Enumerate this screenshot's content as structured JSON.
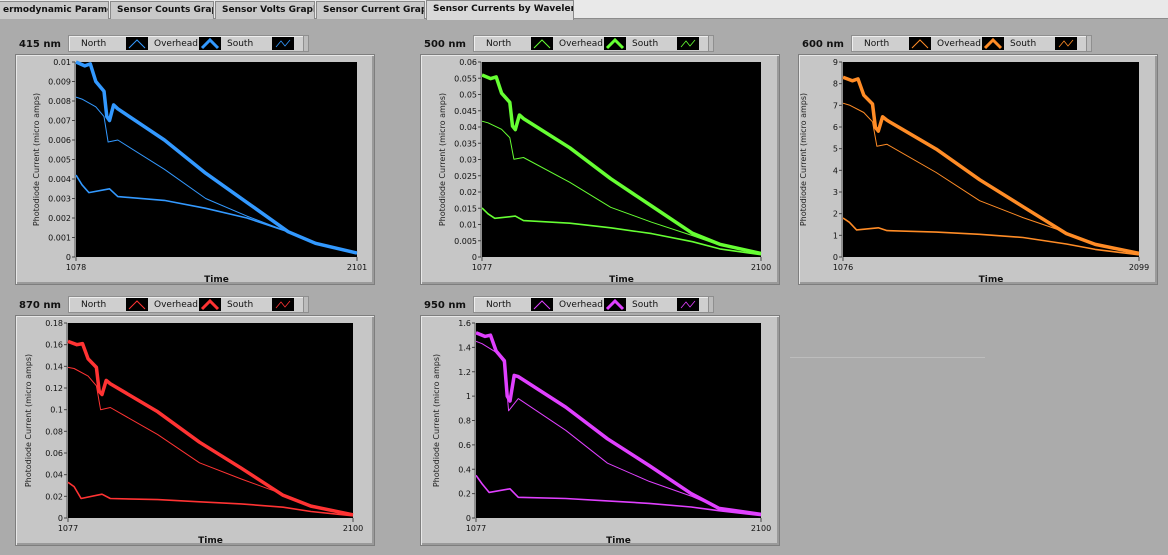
{
  "tabs": [
    {
      "label": "ermodynamic Parameters"
    },
    {
      "label": "Sensor Counts Graphs"
    },
    {
      "label": "Sensor Volts Graphs"
    },
    {
      "label": "Sensor Current Graphs"
    },
    {
      "label": "Sensor Currents by Wavelength",
      "active": true
    }
  ],
  "legend_labels": [
    "North",
    "Overhead",
    "South"
  ],
  "chart_data": [
    {
      "type": "line",
      "title": "415 nm",
      "color": "#3399ff",
      "xlabel": "Time",
      "ylabel": "Photodiode Current (micro amps)",
      "xlim": [
        1078,
        2101
      ],
      "ylim": [
        0,
        0.01
      ],
      "xtick_labels": [
        "1078",
        "2101"
      ],
      "ytick_labels": [
        "0",
        "0.001",
        "0.002",
        "0.003",
        "0.004",
        "0.005",
        "0.006",
        "0.007",
        "0.008",
        "0.009",
        "0.01"
      ],
      "series": [
        {
          "name": "Overhead",
          "x": [
            1078,
            1110,
            1130,
            1150,
            1180,
            1190,
            1200,
            1215,
            1230,
            1400,
            1550,
            1700,
            1850,
            1950,
            2101
          ],
          "y": [
            0.01,
            0.0098,
            0.0099,
            0.009,
            0.0085,
            0.0072,
            0.007,
            0.0078,
            0.0076,
            0.006,
            0.0043,
            0.0028,
            0.0013,
            0.0007,
            0.0002
          ]
        },
        {
          "name": "North",
          "x": [
            1078,
            1100,
            1150,
            1180,
            1195,
            1230,
            1400,
            1550,
            1700,
            1850,
            1950,
            2101
          ],
          "y": [
            0.0082,
            0.0081,
            0.0077,
            0.0072,
            0.0059,
            0.006,
            0.0045,
            0.003,
            0.0021,
            0.0013,
            0.0007,
            0.0002
          ]
        },
        {
          "name": "South",
          "x": [
            1078,
            1100,
            1125,
            1200,
            1230,
            1400,
            1550,
            1700,
            1850,
            1950,
            2101
          ],
          "y": [
            0.0042,
            0.0037,
            0.0033,
            0.0035,
            0.0031,
            0.0029,
            0.0025,
            0.002,
            0.0013,
            0.0007,
            0.0002
          ]
        }
      ]
    },
    {
      "type": "line",
      "title": "500 nm",
      "color": "#66ff33",
      "xlabel": "Time",
      "ylabel": "Photodiode Current (micro amps)",
      "xlim": [
        1077,
        2100
      ],
      "ylim": [
        0,
        0.06
      ],
      "xtick_labels": [
        "1077",
        "2100"
      ],
      "ytick_labels": [
        "0",
        "0.005",
        "0.01",
        "0.015",
        "0.02",
        "0.025",
        "0.03",
        "0.035",
        "0.04",
        "0.045",
        "0.05",
        "0.055",
        "0.06"
      ],
      "series": [
        {
          "name": "Overhead",
          "x": [
            1077,
            1109,
            1129,
            1149,
            1179,
            1189,
            1199,
            1214,
            1229,
            1399,
            1549,
            1699,
            1849,
            1949,
            2100
          ],
          "y": [
            0.056,
            0.0549,
            0.0554,
            0.0504,
            0.0476,
            0.0403,
            0.0392,
            0.0437,
            0.0426,
            0.0336,
            0.0241,
            0.0157,
            0.0073,
            0.0039,
            0.0011
          ]
        },
        {
          "name": "North",
          "x": [
            1077,
            1099,
            1149,
            1179,
            1194,
            1229,
            1399,
            1549,
            1699,
            1849,
            1949,
            2100
          ],
          "y": [
            0.0418,
            0.0413,
            0.0393,
            0.0367,
            0.0301,
            0.0306,
            0.023,
            0.0153,
            0.0107,
            0.0066,
            0.0036,
            0.001
          ]
        },
        {
          "name": "South",
          "x": [
            1077,
            1099,
            1124,
            1199,
            1229,
            1399,
            1549,
            1699,
            1849,
            1949,
            2100
          ],
          "y": [
            0.0151,
            0.0133,
            0.0119,
            0.0126,
            0.0112,
            0.0104,
            0.009,
            0.0072,
            0.0047,
            0.0025,
            0.0007
          ]
        }
      ]
    },
    {
      "type": "line",
      "title": "600 nm",
      "color": "#ff8c26",
      "xlabel": "Time",
      "ylabel": "Photodiode Current (micro amps)",
      "xlim": [
        1076,
        2099
      ],
      "ylim": [
        0,
        9
      ],
      "xtick_labels": [
        "1076",
        "2099"
      ],
      "ytick_labels": [
        "0",
        "1",
        "2",
        "3",
        "4",
        "5",
        "6",
        "7",
        "8",
        "9"
      ],
      "series": [
        {
          "name": "Overhead",
          "x": [
            1076,
            1108,
            1128,
            1148,
            1178,
            1188,
            1198,
            1213,
            1228,
            1398,
            1548,
            1698,
            1848,
            1948,
            2099
          ],
          "y": [
            8.3,
            8.13,
            8.22,
            7.47,
            7.06,
            5.98,
            5.81,
            6.47,
            6.31,
            4.98,
            3.57,
            2.32,
            1.08,
            0.58,
            0.17
          ]
        },
        {
          "name": "North",
          "x": [
            1076,
            1098,
            1148,
            1178,
            1193,
            1228,
            1398,
            1548,
            1698,
            1848,
            1948,
            2099
          ],
          "y": [
            7.1,
            7.01,
            6.67,
            6.24,
            5.11,
            5.2,
            3.9,
            2.6,
            1.82,
            1.13,
            0.61,
            0.17
          ]
        },
        {
          "name": "South",
          "x": [
            1076,
            1098,
            1123,
            1198,
            1228,
            1398,
            1548,
            1698,
            1848,
            1948,
            2099
          ],
          "y": [
            1.8,
            1.6,
            1.25,
            1.35,
            1.22,
            1.15,
            1.05,
            0.9,
            0.6,
            0.35,
            0.1
          ]
        }
      ]
    },
    {
      "type": "line",
      "title": "870 nm",
      "color": "#ff3333",
      "xlabel": "Time",
      "ylabel": "Photodiode Current (micro amps)",
      "xlim": [
        1077,
        2100
      ],
      "ylim": [
        0,
        0.18
      ],
      "xtick_labels": [
        "1077",
        "2100"
      ],
      "ytick_labels": [
        "0",
        "0.02",
        "0.04",
        "0.06",
        "0.08",
        "0.1",
        "0.12",
        "0.14",
        "0.16",
        "0.18"
      ],
      "series": [
        {
          "name": "Overhead",
          "x": [
            1077,
            1109,
            1129,
            1149,
            1179,
            1189,
            1199,
            1214,
            1229,
            1399,
            1549,
            1699,
            1849,
            1949,
            2100
          ],
          "y": [
            0.163,
            0.16,
            0.161,
            0.147,
            0.139,
            0.117,
            0.114,
            0.127,
            0.124,
            0.098,
            0.07,
            0.046,
            0.021,
            0.011,
            0.003
          ]
        },
        {
          "name": "North",
          "x": [
            1077,
            1099,
            1149,
            1179,
            1194,
            1229,
            1399,
            1549,
            1699,
            1849,
            1949,
            2100
          ],
          "y": [
            0.139,
            0.138,
            0.131,
            0.122,
            0.1,
            0.102,
            0.077,
            0.051,
            0.036,
            0.022,
            0.012,
            0.003
          ]
        },
        {
          "name": "South",
          "x": [
            1077,
            1099,
            1124,
            1199,
            1229,
            1399,
            1549,
            1699,
            1849,
            1949,
            2100
          ],
          "y": [
            0.033,
            0.029,
            0.018,
            0.022,
            0.018,
            0.017,
            0.015,
            0.013,
            0.01,
            0.006,
            0.002
          ]
        }
      ]
    },
    {
      "type": "line",
      "title": "950 nm",
      "color": "#e040ff",
      "xlabel": "Time",
      "ylabel": "Photodiode Current (micro amps)",
      "xlim": [
        1077,
        2100
      ],
      "ylim": [
        0,
        1.6
      ],
      "xtick_labels": [
        "1077",
        "2100"
      ],
      "ytick_labels": [
        "0",
        "0.2",
        "0.4",
        "0.6",
        "0.8",
        "1",
        "1.2",
        "1.4",
        "1.6"
      ],
      "series": [
        {
          "name": "Overhead",
          "x": [
            1077,
            1109,
            1129,
            1149,
            1179,
            1189,
            1199,
            1214,
            1229,
            1399,
            1549,
            1699,
            1849,
            1949,
            2100
          ],
          "y": [
            1.52,
            1.49,
            1.5,
            1.37,
            1.29,
            1.0,
            0.96,
            1.17,
            1.16,
            0.91,
            0.65,
            0.43,
            0.2,
            0.08,
            0.03
          ]
        },
        {
          "name": "North",
          "x": [
            1077,
            1099,
            1149,
            1179,
            1194,
            1229,
            1399,
            1549,
            1699,
            1849,
            1949,
            2100
          ],
          "y": [
            1.45,
            1.43,
            1.36,
            1.27,
            0.88,
            0.98,
            0.72,
            0.45,
            0.3,
            0.18,
            0.08,
            0.03
          ]
        },
        {
          "name": "South",
          "x": [
            1077,
            1099,
            1124,
            1199,
            1229,
            1399,
            1549,
            1699,
            1849,
            1949,
            2100
          ],
          "y": [
            0.35,
            0.28,
            0.21,
            0.24,
            0.17,
            0.16,
            0.14,
            0.12,
            0.09,
            0.06,
            0.02
          ]
        }
      ]
    }
  ]
}
